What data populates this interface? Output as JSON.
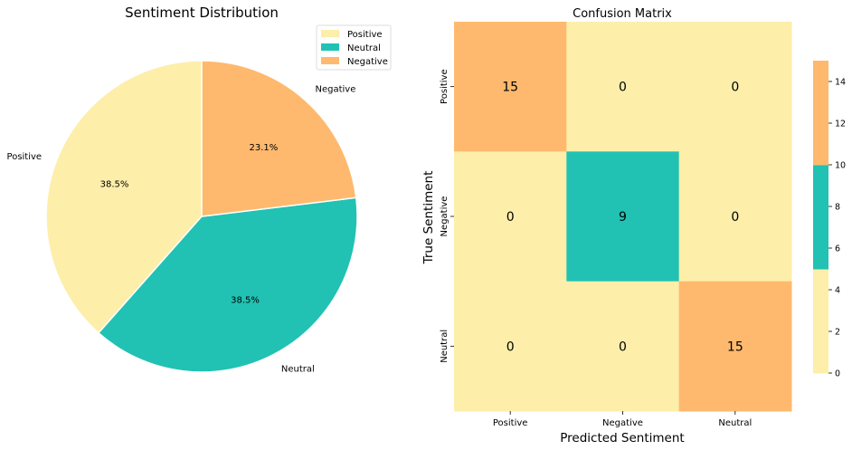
{
  "colors": {
    "positive": "#FDEEAA",
    "neutral": "#21C2B3",
    "negative": "#FEB96E",
    "text": "#000000"
  },
  "chart_data": [
    {
      "type": "pie",
      "title": "Sentiment Distribution",
      "labels": [
        "Positive",
        "Neutral",
        "Negative"
      ],
      "values": [
        15,
        15,
        9
      ],
      "pct_labels": [
        "38.5%",
        "38.5%",
        "23.1%"
      ],
      "colors": [
        "#FDEEAA",
        "#21C2B3",
        "#FEB96E"
      ],
      "start_angle_deg": 90,
      "direction": "counterclockwise",
      "legend": {
        "position": "top-right",
        "entries": [
          "Positive",
          "Neutral",
          "Negative"
        ]
      }
    },
    {
      "type": "heatmap",
      "title": "Confusion Matrix",
      "xlabel": "Predicted Sentiment",
      "ylabel": "True Sentiment",
      "x_categories": [
        "Positive",
        "Negative",
        "Neutral"
      ],
      "y_categories": [
        "Positive",
        "Negative",
        "Neutral"
      ],
      "values": [
        [
          15,
          0,
          0
        ],
        [
          0,
          9,
          0
        ],
        [
          0,
          0,
          15
        ]
      ],
      "colorbar": {
        "range": [
          0,
          15
        ],
        "ticks": [
          "0",
          "2",
          "4",
          "6",
          "8",
          "10",
          "12",
          "14"
        ],
        "bins": [
          {
            "from": 0,
            "to": 5,
            "color": "#FDEEAA"
          },
          {
            "from": 5,
            "to": 10,
            "color": "#21C2B3"
          },
          {
            "from": 10,
            "to": 15,
            "color": "#FEB96E"
          }
        ]
      }
    }
  ]
}
